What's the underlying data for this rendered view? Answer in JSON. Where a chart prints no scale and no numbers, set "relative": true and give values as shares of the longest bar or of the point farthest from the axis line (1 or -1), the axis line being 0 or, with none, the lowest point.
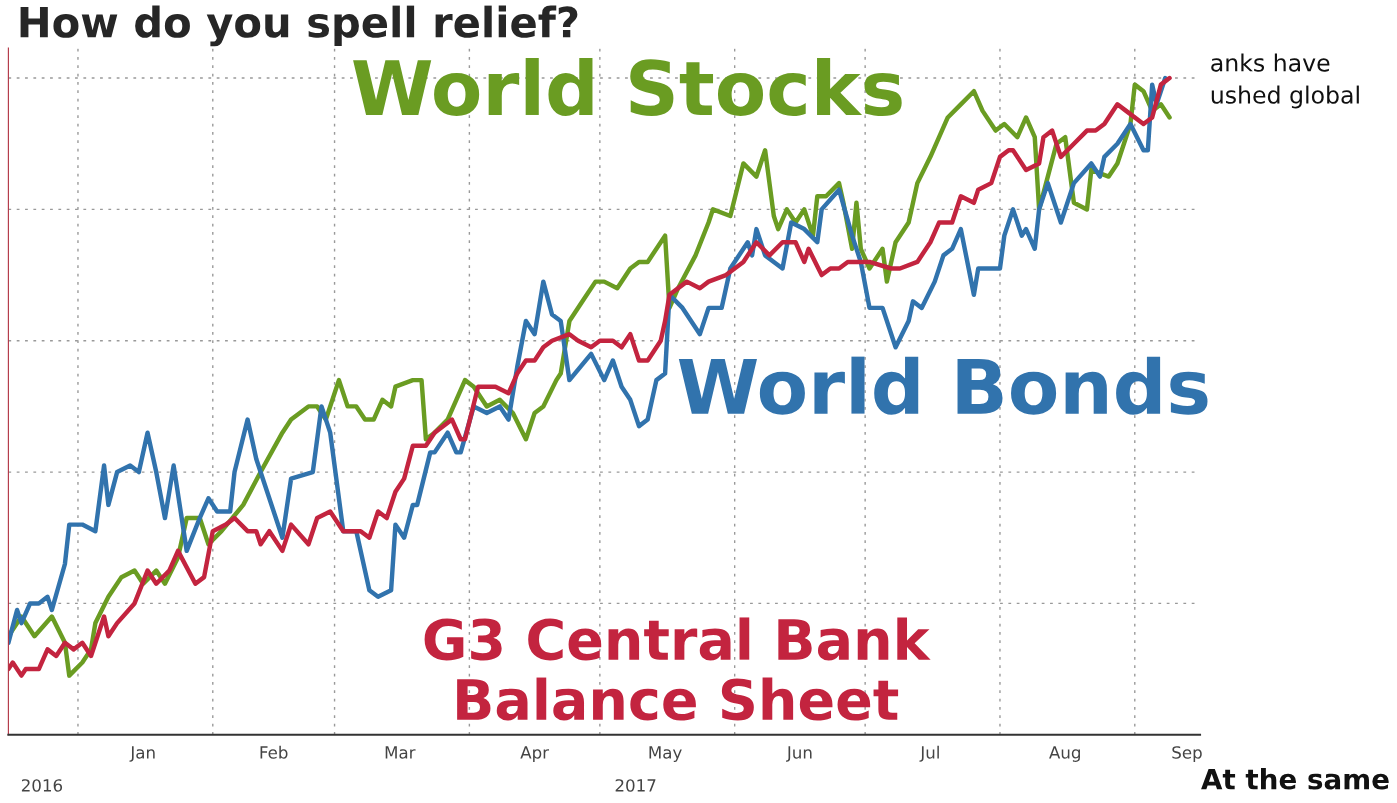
{
  "chart_data": {
    "type": "line",
    "title": "How do you spell relief?",
    "relative": true,
    "grid": true,
    "legend": false,
    "xlim": [
      "2016-12-16",
      "2017-09-16"
    ],
    "xticks": [
      {
        "value": "2017-01-01",
        "label": null
      },
      {
        "value": "2017-01-16",
        "label": "Jan"
      },
      {
        "value": "2017-02-01",
        "label": null
      },
      {
        "value": "2017-02-15",
        "label": "Feb"
      },
      {
        "value": "2017-03-01",
        "label": null
      },
      {
        "value": "2017-03-16",
        "label": "Mar"
      },
      {
        "value": "2017-04-01",
        "label": null
      },
      {
        "value": "2017-04-16",
        "label": "Apr"
      },
      {
        "value": "2017-05-01",
        "label": null
      },
      {
        "value": "2017-05-16",
        "label": "May"
      },
      {
        "value": "2017-06-01",
        "label": null
      },
      {
        "value": "2017-06-16",
        "label": "Jun"
      },
      {
        "value": "2017-07-01",
        "label": null
      },
      {
        "value": "2017-07-16",
        "label": "Jul"
      },
      {
        "value": "2017-08-01",
        "label": null
      },
      {
        "value": "2017-08-16",
        "label": "Aug"
      },
      {
        "value": "2017-09-01",
        "label": null
      },
      {
        "value": "2017-09-13",
        "label": "Sep"
      }
    ],
    "annotations": [
      "2016",
      "2017",
      "anks have",
      "ushed global",
      "At the same"
    ],
    "series": [
      {
        "name": "World Stocks",
        "color": "#6a9c22",
        "x": [
          "2016-12-16",
          "2016-12-19",
          "2016-12-22",
          "2016-12-26",
          "2016-12-29",
          "2016-12-30",
          "2017-01-02",
          "2017-01-04",
          "2017-01-05",
          "2017-01-08",
          "2017-01-11",
          "2017-01-14",
          "2017-01-16",
          "2017-01-19",
          "2017-01-21",
          "2017-01-24",
          "2017-01-26",
          "2017-01-29",
          "2017-01-31",
          "2017-02-03",
          "2017-02-08",
          "2017-02-12",
          "2017-02-17",
          "2017-02-19",
          "2017-02-23",
          "2017-02-25",
          "2017-02-27",
          "2017-03-02",
          "2017-03-04",
          "2017-03-06",
          "2017-03-08",
          "2017-03-10",
          "2017-03-12",
          "2017-03-14",
          "2017-03-15",
          "2017-03-19",
          "2017-03-21",
          "2017-03-22",
          "2017-03-24",
          "2017-03-27",
          "2017-03-29",
          "2017-03-31",
          "2017-04-02",
          "2017-04-05",
          "2017-04-08",
          "2017-04-11",
          "2017-04-14",
          "2017-04-16",
          "2017-04-18",
          "2017-04-21",
          "2017-04-22",
          "2017-04-24",
          "2017-04-27",
          "2017-04-30",
          "2017-05-02",
          "2017-05-05",
          "2017-05-08",
          "2017-05-10",
          "2017-05-12",
          "2017-05-16",
          "2017-05-17",
          "2017-05-19",
          "2017-05-23",
          "2017-05-26",
          "2017-05-27",
          "2017-05-31",
          "2017-06-03",
          "2017-06-06",
          "2017-06-08",
          "2017-06-10",
          "2017-06-11",
          "2017-06-13",
          "2017-06-15",
          "2017-06-17",
          "2017-06-19",
          "2017-06-20",
          "2017-06-22",
          "2017-06-25",
          "2017-06-26",
          "2017-06-28",
          "2017-06-29",
          "2017-06-30",
          "2017-07-02",
          "2017-07-05",
          "2017-07-06",
          "2017-07-08",
          "2017-07-11",
          "2017-07-13",
          "2017-07-16",
          "2017-07-20",
          "2017-07-23",
          "2017-07-26",
          "2017-07-28",
          "2017-07-31",
          "2017-08-02",
          "2017-08-05",
          "2017-08-07",
          "2017-08-09",
          "2017-08-10",
          "2017-08-12",
          "2017-08-14",
          "2017-08-16",
          "2017-08-18",
          "2017-08-21",
          "2017-08-22",
          "2017-08-26",
          "2017-08-28",
          "2017-08-31",
          "2017-09-01",
          "2017-09-03",
          "2017-09-05",
          "2017-09-07",
          "2017-09-09"
        ],
        "values": [
          0.15,
          0.18,
          0.15,
          0.18,
          0.14,
          0.09,
          0.11,
          0.13,
          0.17,
          0.21,
          0.24,
          0.25,
          0.23,
          0.25,
          0.23,
          0.27,
          0.33,
          0.33,
          0.29,
          0.31,
          0.35,
          0.4,
          0.46,
          0.48,
          0.5,
          0.5,
          0.48,
          0.54,
          0.5,
          0.5,
          0.48,
          0.48,
          0.51,
          0.5,
          0.53,
          0.54,
          0.54,
          0.45,
          0.46,
          0.48,
          0.51,
          0.54,
          0.53,
          0.5,
          0.51,
          0.49,
          0.45,
          0.49,
          0.5,
          0.54,
          0.55,
          0.63,
          0.66,
          0.69,
          0.69,
          0.68,
          0.71,
          0.72,
          0.72,
          0.76,
          0.65,
          0.68,
          0.73,
          0.78,
          0.8,
          0.79,
          0.87,
          0.85,
          0.89,
          0.79,
          0.77,
          0.8,
          0.78,
          0.8,
          0.76,
          0.82,
          0.82,
          0.84,
          0.81,
          0.74,
          0.81,
          0.74,
          0.71,
          0.74,
          0.69,
          0.75,
          0.78,
          0.84,
          0.88,
          0.94,
          0.96,
          0.98,
          0.95,
          0.92,
          0.93,
          0.91,
          0.94,
          0.91,
          0.8,
          0.85,
          0.9,
          0.91,
          0.81,
          0.8,
          0.86,
          0.85,
          0.87,
          0.93,
          0.99,
          0.98,
          0.95,
          0.96,
          0.94
        ]
      },
      {
        "name": "World Bonds",
        "color": "#3173ad",
        "x": [
          "2016-12-16",
          "2016-12-18",
          "2016-12-19",
          "2016-12-21",
          "2016-12-23",
          "2016-12-25",
          "2016-12-26",
          "2016-12-29",
          "2016-12-30",
          "2017-01-02",
          "2017-01-05",
          "2017-01-07",
          "2017-01-08",
          "2017-01-10",
          "2017-01-13",
          "2017-01-15",
          "2017-01-17",
          "2017-01-19",
          "2017-01-21",
          "2017-01-23",
          "2017-01-26",
          "2017-01-29",
          "2017-01-31",
          "2017-02-02",
          "2017-02-05",
          "2017-02-06",
          "2017-02-09",
          "2017-02-11",
          "2017-02-17",
          "2017-02-19",
          "2017-02-24",
          "2017-02-26",
          "2017-02-28",
          "2017-03-03",
          "2017-03-06",
          "2017-03-09",
          "2017-03-11",
          "2017-03-14",
          "2017-03-15",
          "2017-03-17",
          "2017-03-19",
          "2017-03-20",
          "2017-03-23",
          "2017-03-24",
          "2017-03-27",
          "2017-03-29",
          "2017-03-30",
          "2017-04-02",
          "2017-04-05",
          "2017-04-08",
          "2017-04-10",
          "2017-04-12",
          "2017-04-14",
          "2017-04-16",
          "2017-04-18",
          "2017-04-20",
          "2017-04-22",
          "2017-04-24",
          "2017-04-29",
          "2017-05-02",
          "2017-05-04",
          "2017-05-06",
          "2017-05-08",
          "2017-05-10",
          "2017-05-12",
          "2017-05-14",
          "2017-05-16",
          "2017-05-17",
          "2017-05-20",
          "2017-05-24",
          "2017-05-26",
          "2017-05-29",
          "2017-05-31",
          "2017-06-04",
          "2017-06-05",
          "2017-06-06",
          "2017-06-08",
          "2017-06-10",
          "2017-06-12",
          "2017-06-14",
          "2017-06-17",
          "2017-06-20",
          "2017-06-21",
          "2017-06-25",
          "2017-06-28",
          "2017-06-30",
          "2017-07-02",
          "2017-07-05",
          "2017-07-08",
          "2017-07-11",
          "2017-07-12",
          "2017-07-14",
          "2017-07-17",
          "2017-07-19",
          "2017-07-21",
          "2017-07-23",
          "2017-07-26",
          "2017-07-27",
          "2017-07-30",
          "2017-08-01",
          "2017-08-02",
          "2017-08-04",
          "2017-08-06",
          "2017-08-07",
          "2017-08-09",
          "2017-08-10",
          "2017-08-12",
          "2017-08-15",
          "2017-08-18",
          "2017-08-22",
          "2017-08-24",
          "2017-08-25",
          "2017-08-28",
          "2017-08-31",
          "2017-09-03",
          "2017-09-04",
          "2017-09-05",
          "2017-09-06",
          "2017-09-08"
        ],
        "values": [
          0.14,
          0.19,
          0.17,
          0.2,
          0.2,
          0.21,
          0.19,
          0.26,
          0.32,
          0.32,
          0.31,
          0.41,
          0.35,
          0.4,
          0.41,
          0.4,
          0.46,
          0.4,
          0.33,
          0.41,
          0.28,
          0.33,
          0.36,
          0.34,
          0.34,
          0.4,
          0.48,
          0.42,
          0.3,
          0.39,
          0.4,
          0.5,
          0.46,
          0.31,
          0.31,
          0.22,
          0.21,
          0.22,
          0.32,
          0.3,
          0.35,
          0.35,
          0.43,
          0.43,
          0.46,
          0.43,
          0.43,
          0.5,
          0.49,
          0.5,
          0.48,
          0.56,
          0.63,
          0.61,
          0.69,
          0.64,
          0.63,
          0.54,
          0.58,
          0.54,
          0.57,
          0.53,
          0.51,
          0.47,
          0.48,
          0.54,
          0.55,
          0.67,
          0.65,
          0.61,
          0.65,
          0.65,
          0.71,
          0.75,
          0.73,
          0.77,
          0.73,
          0.72,
          0.71,
          0.78,
          0.77,
          0.75,
          0.8,
          0.83,
          0.76,
          0.72,
          0.65,
          0.65,
          0.59,
          0.63,
          0.66,
          0.65,
          0.69,
          0.73,
          0.74,
          0.77,
          0.67,
          0.71,
          0.71,
          0.71,
          0.76,
          0.8,
          0.76,
          0.77,
          0.74,
          0.8,
          0.84,
          0.78,
          0.84,
          0.87,
          0.85,
          0.88,
          0.9,
          0.93,
          0.89,
          0.89,
          0.99,
          0.96,
          1.0
        ]
      },
      {
        "name": "G3 Central Bank Balance Sheet",
        "color": "#c3243f",
        "x": [
          "2016-12-16",
          "2016-12-17",
          "2016-12-19",
          "2016-12-20",
          "2016-12-23",
          "2016-12-25",
          "2016-12-27",
          "2016-12-29",
          "2016-12-31",
          "2017-01-02",
          "2017-01-04",
          "2017-01-07",
          "2017-01-08",
          "2017-01-10",
          "2017-01-14",
          "2017-01-17",
          "2017-01-19",
          "2017-01-22",
          "2017-01-24",
          "2017-01-28",
          "2017-01-30",
          "2017-02-01",
          "2017-02-04",
          "2017-02-06",
          "2017-02-09",
          "2017-02-11",
          "2017-02-12",
          "2017-02-14",
          "2017-02-17",
          "2017-02-19",
          "2017-02-23",
          "2017-02-25",
          "2017-02-28",
          "2017-03-03",
          "2017-03-07",
          "2017-03-09",
          "2017-03-11",
          "2017-03-13",
          "2017-03-15",
          "2017-03-17",
          "2017-03-19",
          "2017-03-22",
          "2017-03-24",
          "2017-03-28",
          "2017-03-30",
          "2017-03-31",
          "2017-04-03",
          "2017-04-07",
          "2017-04-10",
          "2017-04-12",
          "2017-04-14",
          "2017-04-16",
          "2017-04-18",
          "2017-04-20",
          "2017-04-24",
          "2017-04-26",
          "2017-04-29",
          "2017-05-01",
          "2017-05-04",
          "2017-05-06",
          "2017-05-08",
          "2017-05-10",
          "2017-05-12",
          "2017-05-15",
          "2017-05-16",
          "2017-05-17",
          "2017-05-21",
          "2017-05-24",
          "2017-05-26",
          "2017-05-30",
          "2017-06-03",
          "2017-06-06",
          "2017-06-09",
          "2017-06-12",
          "2017-06-15",
          "2017-06-17",
          "2017-06-18",
          "2017-06-21",
          "2017-06-23",
          "2017-06-25",
          "2017-06-27",
          "2017-07-02",
          "2017-07-07",
          "2017-07-09",
          "2017-07-13",
          "2017-07-16",
          "2017-07-18",
          "2017-07-21",
          "2017-07-23",
          "2017-07-26",
          "2017-07-27",
          "2017-07-30",
          "2017-08-01",
          "2017-08-03",
          "2017-08-04",
          "2017-08-07",
          "2017-08-10",
          "2017-08-11",
          "2017-08-13",
          "2017-08-15",
          "2017-08-18",
          "2017-08-21",
          "2017-08-23",
          "2017-08-25",
          "2017-08-28",
          "2017-08-30",
          "2017-09-03",
          "2017-09-05",
          "2017-09-07",
          "2017-09-09"
        ],
        "values": [
          0.1,
          0.11,
          0.09,
          0.1,
          0.1,
          0.13,
          0.12,
          0.14,
          0.13,
          0.14,
          0.12,
          0.18,
          0.15,
          0.17,
          0.2,
          0.25,
          0.23,
          0.25,
          0.28,
          0.23,
          0.24,
          0.31,
          0.32,
          0.33,
          0.31,
          0.31,
          0.29,
          0.31,
          0.28,
          0.32,
          0.29,
          0.33,
          0.34,
          0.31,
          0.31,
          0.3,
          0.34,
          0.33,
          0.37,
          0.39,
          0.44,
          0.44,
          0.46,
          0.48,
          0.45,
          0.45,
          0.53,
          0.53,
          0.52,
          0.55,
          0.57,
          0.57,
          0.59,
          0.6,
          0.61,
          0.6,
          0.59,
          0.6,
          0.6,
          0.59,
          0.61,
          0.57,
          0.57,
          0.6,
          0.63,
          0.67,
          0.69,
          0.68,
          0.69,
          0.7,
          0.72,
          0.75,
          0.73,
          0.75,
          0.75,
          0.72,
          0.74,
          0.7,
          0.71,
          0.71,
          0.72,
          0.72,
          0.71,
          0.71,
          0.72,
          0.75,
          0.78,
          0.78,
          0.82,
          0.81,
          0.83,
          0.84,
          0.88,
          0.89,
          0.89,
          0.86,
          0.87,
          0.91,
          0.92,
          0.88,
          0.9,
          0.92,
          0.92,
          0.93,
          0.96,
          0.95,
          0.93,
          0.94,
          0.99,
          1.0
        ]
      }
    ]
  }
}
